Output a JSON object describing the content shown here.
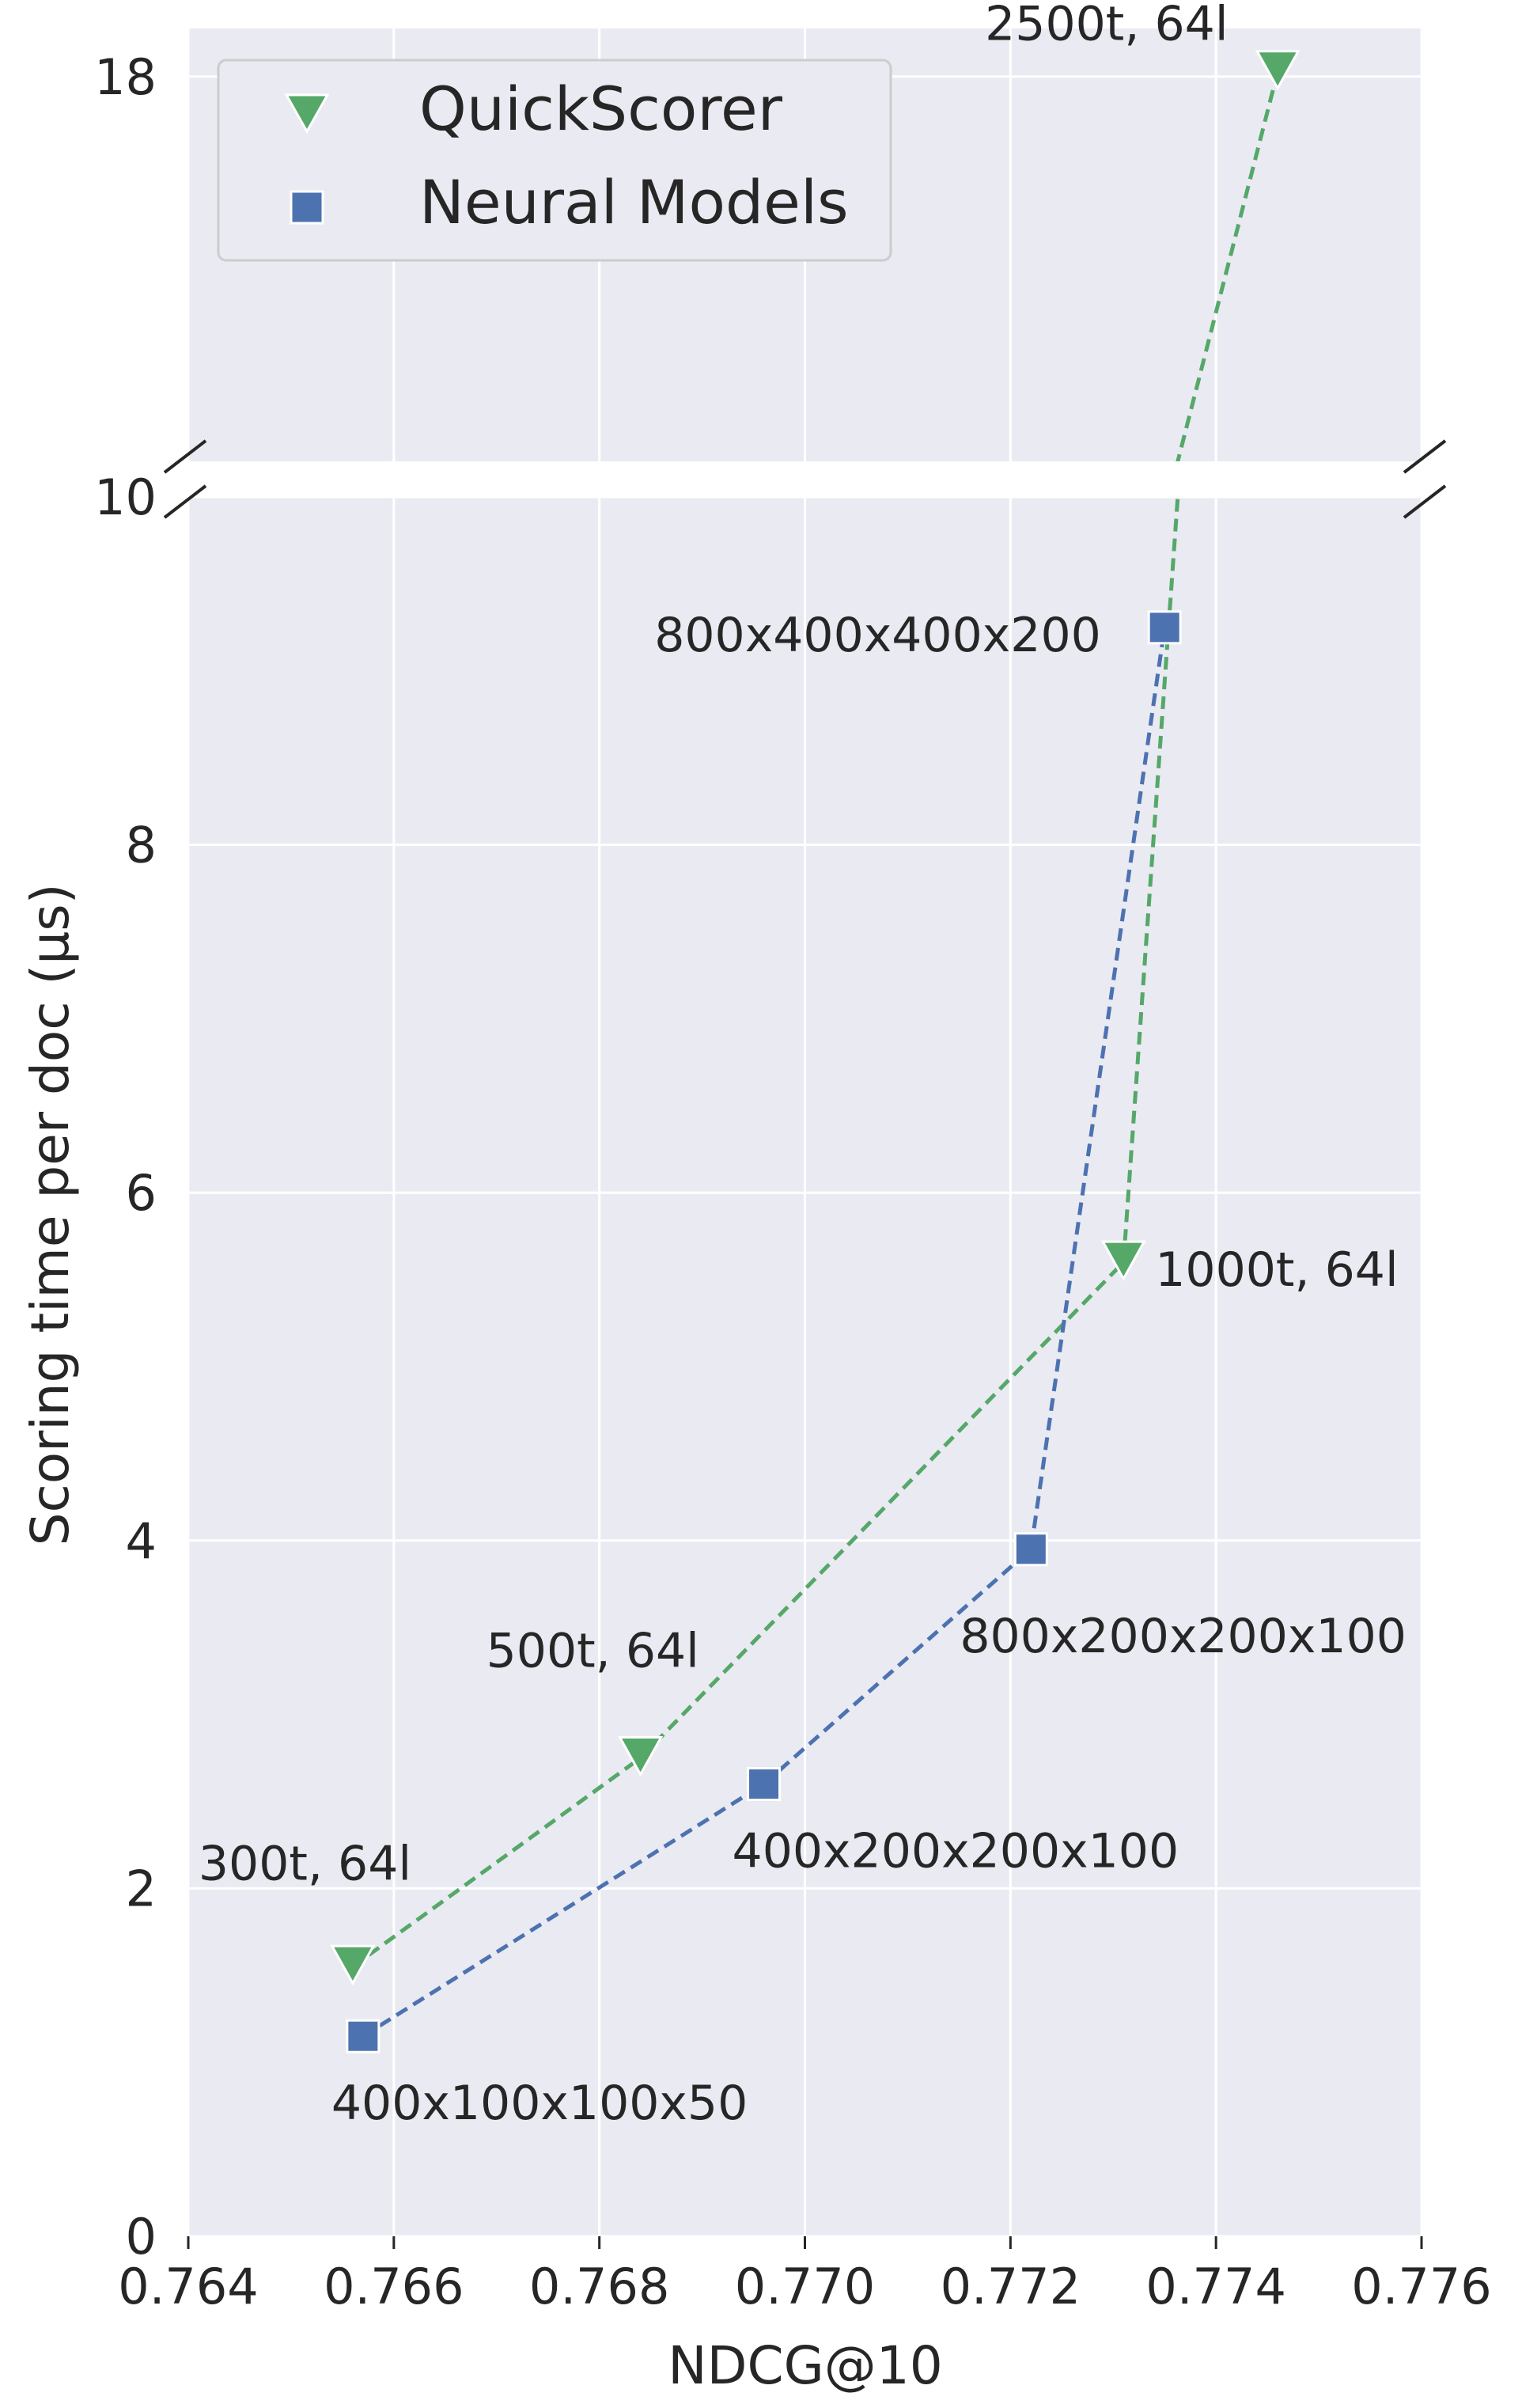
{
  "chart_data": {
    "type": "scatter",
    "title": "",
    "xlabel": "NDCG@10",
    "ylabel": "Scoring time per doc (μs)",
    "xlim": [
      0.764,
      0.776
    ],
    "ylim_lower": [
      0,
      10
    ],
    "ylim_upper": [
      10,
      19
    ],
    "broken_y_axis": true,
    "x_ticks": [
      "0.764",
      "0.766",
      "0.768",
      "0.770",
      "0.772",
      "0.774",
      "0.776"
    ],
    "y_ticks_lower": [
      "0",
      "2",
      "4",
      "6",
      "8",
      "10"
    ],
    "y_ticks_upper": [
      "18"
    ],
    "grid": true,
    "legend_position": "top-left",
    "series": [
      {
        "name": "QuickScorer",
        "marker": "triangle-down",
        "line": "dashed",
        "color": "#55a868",
        "points": [
          {
            "x": 0.7656,
            "y": 1.55,
            "label": "300t, 64l"
          },
          {
            "x": 0.7684,
            "y": 2.75,
            "label": "500t, 64l"
          },
          {
            "x": 0.7731,
            "y": 5.6,
            "label": "1000t, 64l"
          },
          {
            "x": 0.7746,
            "y": 18.1,
            "label": "2500t, 64l"
          }
        ]
      },
      {
        "name": "Neural Models",
        "marker": "square",
        "line": "dashed",
        "color": "#4c72b0",
        "points": [
          {
            "x": 0.7657,
            "y": 1.15,
            "label": "400x100x100x50"
          },
          {
            "x": 0.7696,
            "y": 2.6,
            "label": "400x200x200x100"
          },
          {
            "x": 0.7722,
            "y": 3.95,
            "label": "800x200x200x100"
          },
          {
            "x": 0.7735,
            "y": 9.25,
            "label": "800x400x400x200"
          }
        ]
      }
    ]
  },
  "colors": {
    "plot_background": "#eaeaf2",
    "grid": "#ffffff",
    "quickscorer": "#55a868",
    "neural": "#4c72b0"
  }
}
